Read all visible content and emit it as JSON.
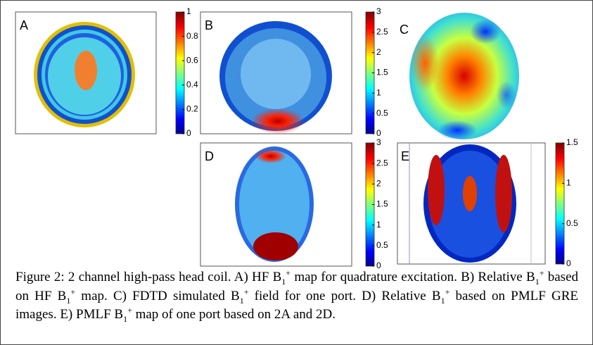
{
  "panels": [
    {
      "label": "A",
      "colorbar": {
        "lim": [
          0,
          1
        ],
        "ticks": [
          0,
          0.2,
          0.4,
          0.6,
          0.8,
          1
        ]
      }
    },
    {
      "label": "B",
      "colorbar": {
        "lim": [
          0,
          3
        ],
        "ticks": [
          0,
          0.5,
          1,
          1.5,
          2,
          2.5,
          3
        ]
      }
    },
    {
      "label": "C"
    },
    {
      "label": "D",
      "colorbar": {
        "lim": [
          0,
          3
        ],
        "ticks": [
          0,
          0.5,
          1,
          1.5,
          2,
          2.5,
          3
        ]
      }
    },
    {
      "label": "E",
      "colorbar": {
        "lim": [
          0,
          1.5
        ],
        "ticks": [
          0,
          0.5,
          1,
          1.5
        ]
      }
    }
  ],
  "caption": {
    "parts": [
      "Figure 2: 2 channel high-pass head coil. A) HF B",
      "1",
      "+",
      " map for quadrature excitation. B) Relative B",
      "1",
      "+",
      " based on  HF B",
      "1",
      "+",
      " map. C) FDTD simulated  B",
      "1",
      "+",
      " field for one port. D) Relative  B",
      "1",
      "+",
      " based on PMLF GRE images. E) PMLF B",
      "1",
      "+",
      " map of one port based on 2A and 2D."
    ]
  }
}
